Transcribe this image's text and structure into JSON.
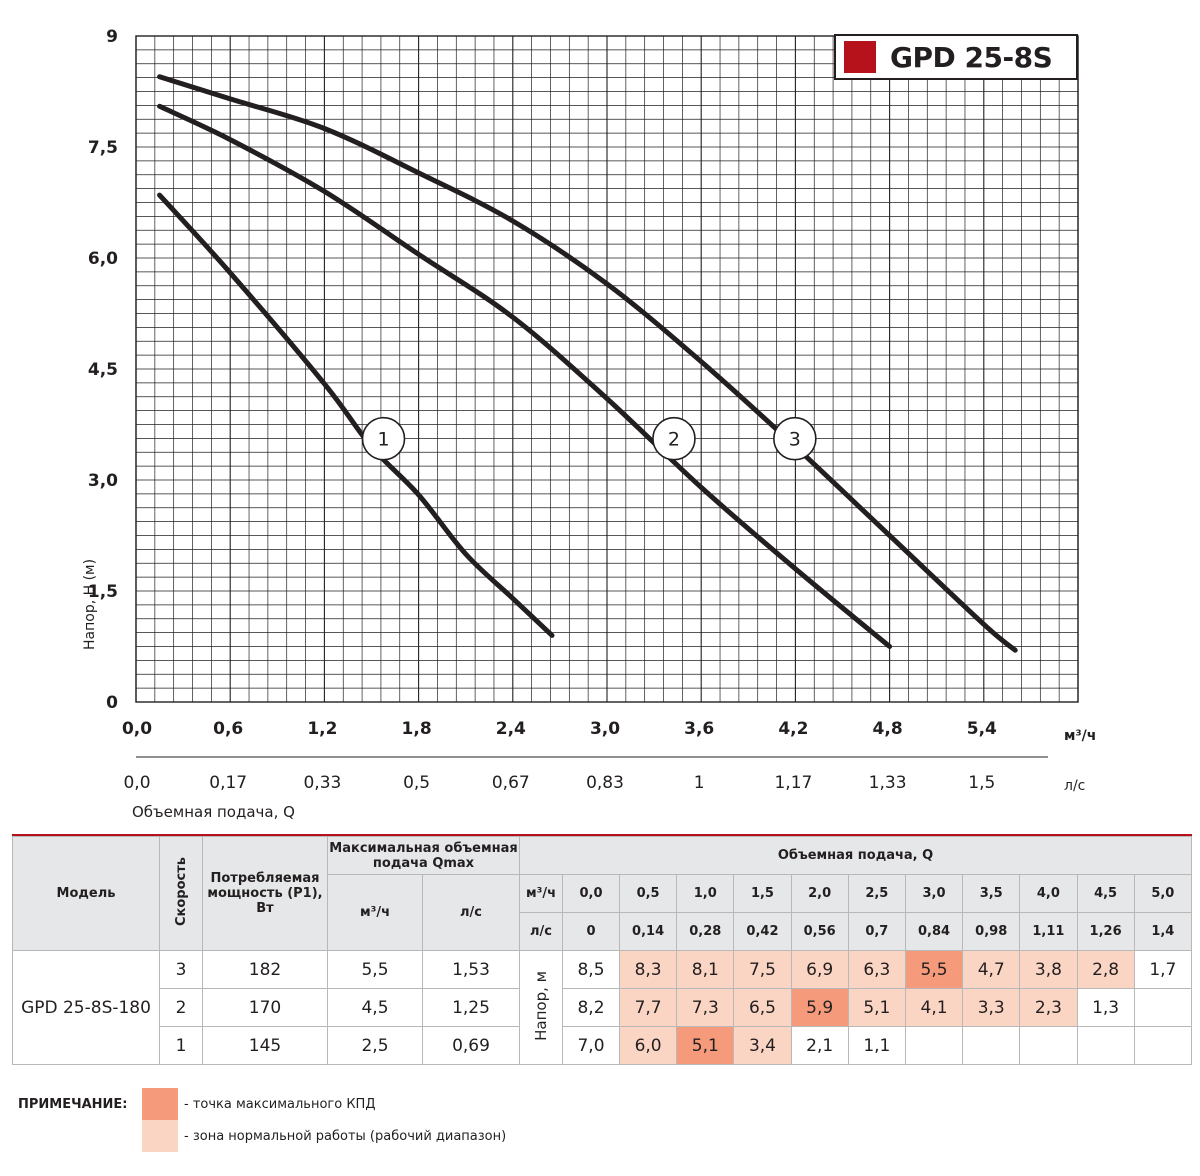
{
  "chart_data": {
    "type": "line",
    "title": "GPD 25-8S",
    "ylabel": "Напор, H (м)",
    "xlabel": "Объемная подача, Q",
    "x_unit": "м³/ч",
    "x2_unit": "л/с",
    "ylim": [
      0,
      9
    ],
    "xlim": [
      0,
      6
    ],
    "grid": true,
    "y_ticks": [
      "0",
      "1,5",
      "3,0",
      "4,5",
      "6,0",
      "7,5",
      "9"
    ],
    "y_tick_values": [
      0,
      1.5,
      3.0,
      4.5,
      6.0,
      7.5,
      9
    ],
    "x_ticks": [
      "0,0",
      "0,6",
      "1,2",
      "1,8",
      "2,4",
      "3,0",
      "3,6",
      "4,2",
      "4,8",
      "5,4"
    ],
    "x_tick_values": [
      0,
      0.6,
      1.2,
      1.8,
      2.4,
      3.0,
      3.6,
      4.2,
      4.8,
      5.4
    ],
    "x2_ticks": [
      "0,0",
      "0,17",
      "0,33",
      "0,5",
      "0,67",
      "0,83",
      "1",
      "1,17",
      "1,33",
      "1,5"
    ],
    "legend": "top-right",
    "series": [
      {
        "name": "1",
        "x": [
          0.15,
          0.6,
          1.2,
          1.5,
          1.8,
          2.1,
          2.4,
          2.65
        ],
        "y": [
          6.85,
          5.8,
          4.3,
          3.45,
          2.8,
          2.0,
          1.4,
          0.9
        ],
        "label_at": [
          1.5,
          3.45
        ]
      },
      {
        "name": "2",
        "x": [
          0.15,
          0.6,
          1.2,
          1.8,
          2.4,
          3.0,
          3.6,
          4.2,
          4.8
        ],
        "y": [
          8.05,
          7.6,
          6.9,
          6.05,
          5.2,
          4.1,
          2.9,
          1.8,
          0.75
        ],
        "label_at": [
          3.35,
          3.45
        ]
      },
      {
        "name": "3",
        "x": [
          0.15,
          0.6,
          1.2,
          1.8,
          2.4,
          3.0,
          3.6,
          4.2,
          4.8,
          5.4,
          5.6
        ],
        "y": [
          8.45,
          8.15,
          7.75,
          7.15,
          6.5,
          5.65,
          4.6,
          3.45,
          2.25,
          1.05,
          0.7
        ],
        "label_at": [
          4.12,
          3.45
        ]
      }
    ]
  },
  "table": {
    "header": {
      "model": "Модель",
      "speed": "Скорость",
      "power": "Потребляемая мощность (P1), Вт",
      "qmax": "Максимальная объемная подача Qmax",
      "qmax_m3": "м³/ч",
      "qmax_ls": "л/с",
      "flow": "Объемная подача, Q",
      "unit_m3": "м³/ч",
      "unit_ls": "л/с",
      "head_unit": "Напор, м",
      "flow_m3": [
        "0,0",
        "0,5",
        "1,0",
        "1,5",
        "2,0",
        "2,5",
        "3,0",
        "3,5",
        "4,0",
        "4,5",
        "5,0"
      ],
      "flow_ls": [
        "0",
        "0,14",
        "0,28",
        "0,42",
        "0,56",
        "0,7",
        "0,84",
        "0,98",
        "1,11",
        "1,26",
        "1,4"
      ]
    },
    "model_name": "GPD 25-8S-180",
    "rows": [
      {
        "speed": "3",
        "power": "182",
        "qmax_m3": "5,5",
        "qmax_ls": "1,53",
        "heads": [
          "8,5",
          "8,3",
          "8,1",
          "7,5",
          "6,9",
          "6,3",
          "5,5",
          "4,7",
          "3,8",
          "2,8",
          "1,7"
        ],
        "zones": [
          "",
          "op",
          "op",
          "op",
          "op",
          "op",
          "pk",
          "op",
          "op",
          "op",
          ""
        ]
      },
      {
        "speed": "2",
        "power": "170",
        "qmax_m3": "4,5",
        "qmax_ls": "1,25",
        "heads": [
          "8,2",
          "7,7",
          "7,3",
          "6,5",
          "5,9",
          "5,1",
          "4,1",
          "3,3",
          "2,3",
          "1,3",
          ""
        ],
        "zones": [
          "",
          "op",
          "op",
          "op",
          "pk",
          "op",
          "op",
          "op",
          "op",
          "",
          ""
        ]
      },
      {
        "speed": "1",
        "power": "145",
        "qmax_m3": "2,5",
        "qmax_ls": "0,69",
        "heads": [
          "7,0",
          "6,0",
          "5,1",
          "3,4",
          "2,1",
          "1,1",
          "",
          "",
          "",
          "",
          ""
        ],
        "zones": [
          "",
          "op",
          "pk",
          "op",
          "",
          "",
          "",
          "",
          "",
          "",
          ""
        ]
      }
    ]
  },
  "note": {
    "label": "ПРИМЕЧАНИЕ:",
    "max_eff": "- точка максимального КПД",
    "normal_zone": "- зона нормальной работы (рабочий диапазон)"
  },
  "colors": {
    "brand": "#b5121b",
    "max_eff": "#f59b7c",
    "normal_zone": "#fbd5c4",
    "curve": "#231f20"
  }
}
